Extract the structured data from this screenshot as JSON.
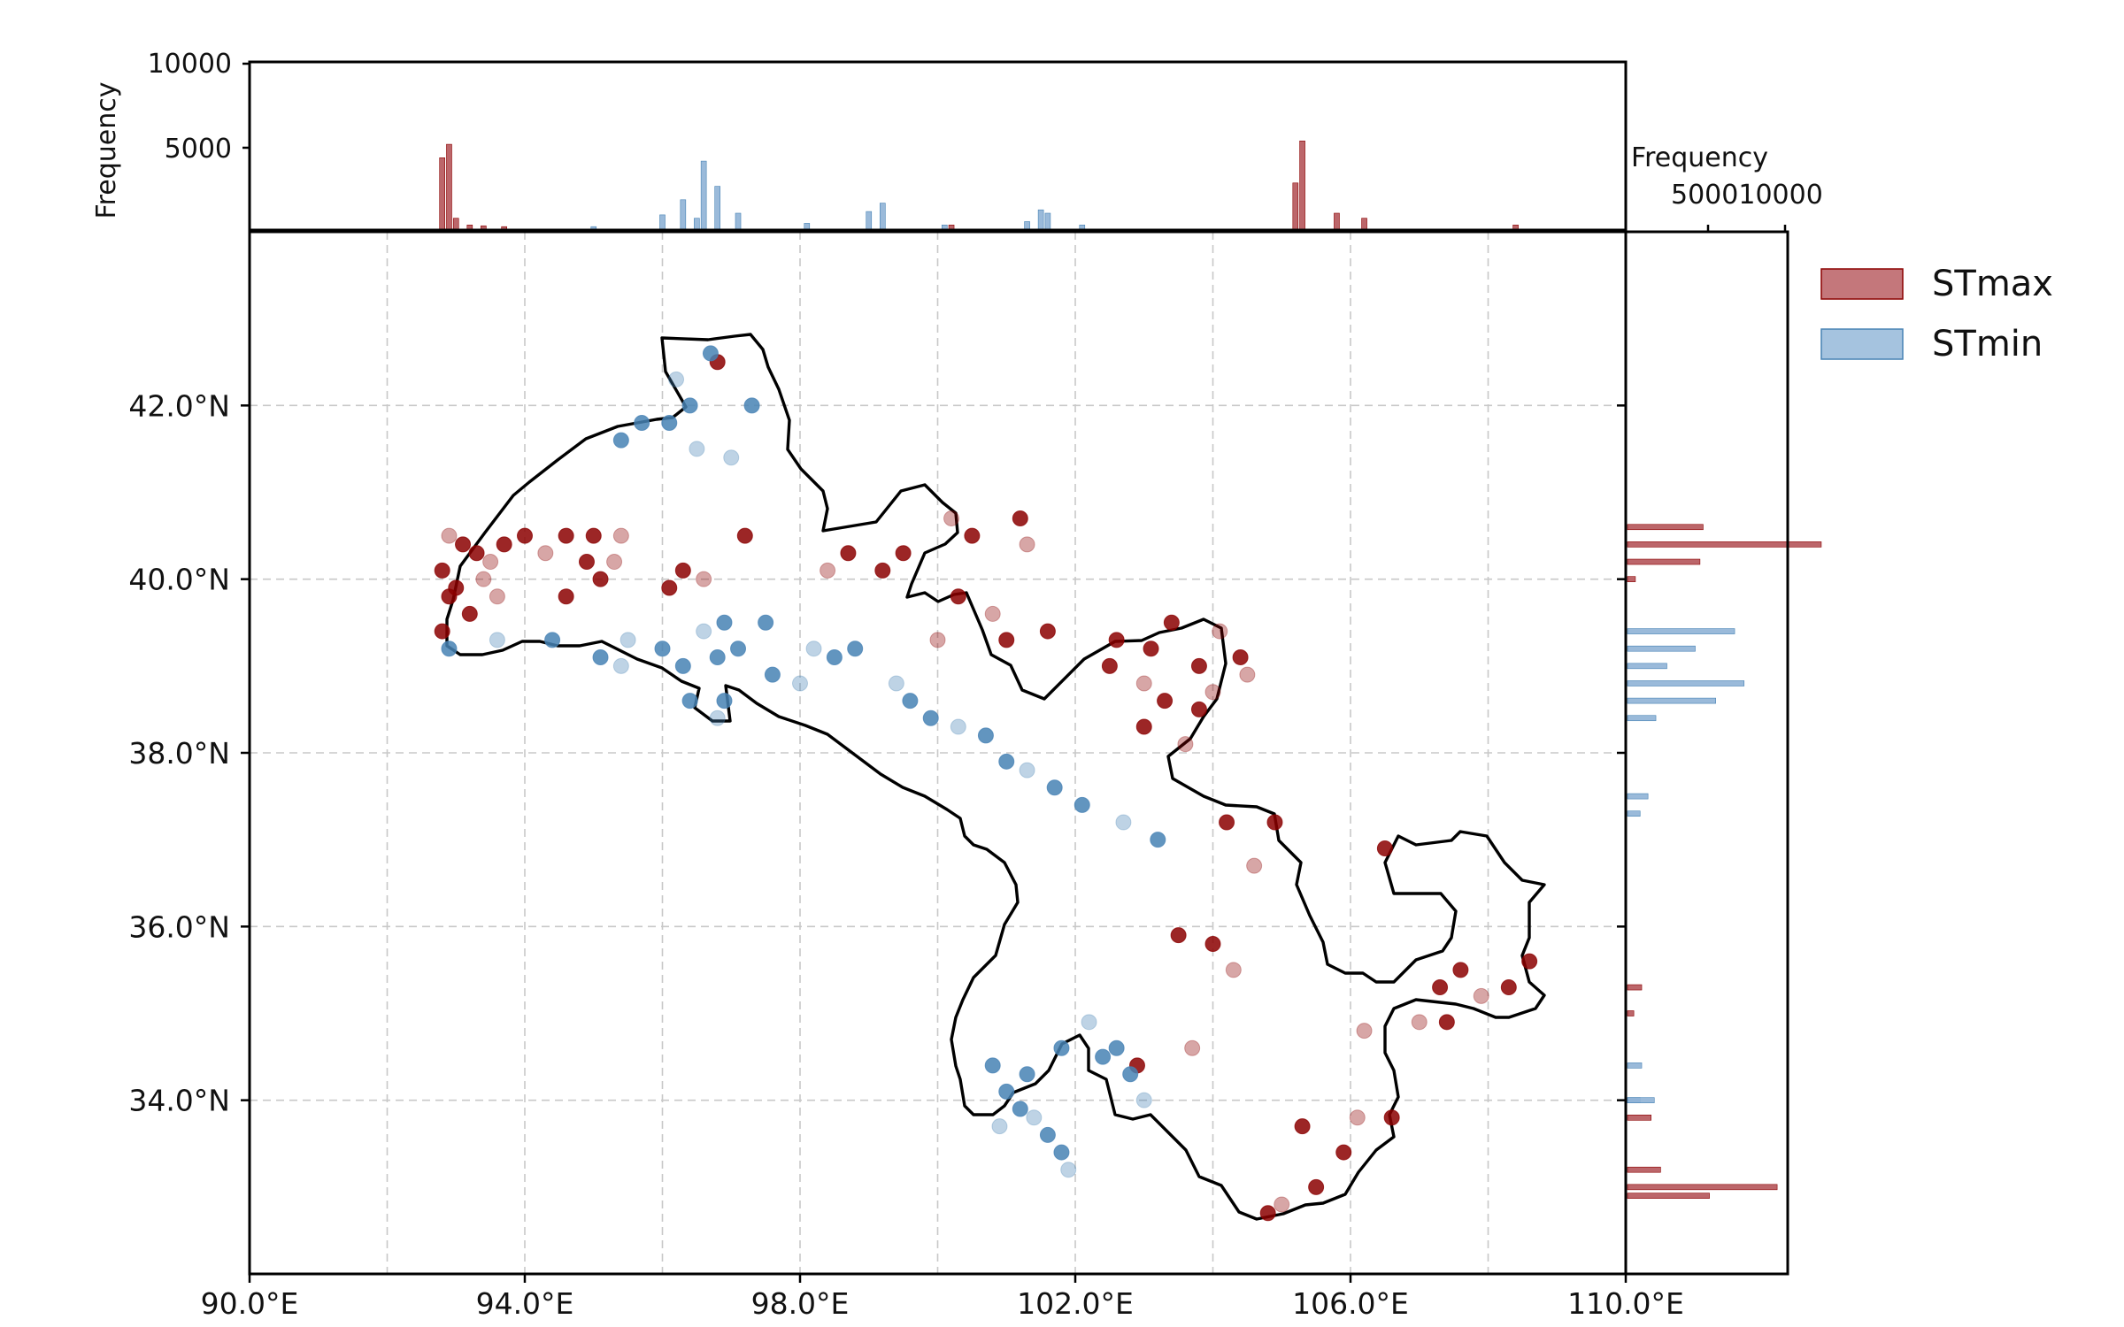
{
  "chart_data": {
    "type": "scatter",
    "map_extent": {
      "lon": [
        90.0,
        110.0
      ],
      "lat": [
        32.0,
        44.0
      ]
    },
    "x_ticks": [
      "90.0°E",
      "94.0°E",
      "98.0°E",
      "102.0°E",
      "106.0°E",
      "110.0°E"
    ],
    "x_tick_values": [
      90,
      94,
      98,
      102,
      106,
      110
    ],
    "y_ticks": [
      "34.0°N",
      "36.0°N",
      "38.0°N",
      "40.0°N",
      "42.0°N"
    ],
    "y_tick_values": [
      34,
      36,
      38,
      40,
      42
    ],
    "grid": true,
    "top_hist": {
      "ylabel": "Frequency",
      "ylim": [
        0,
        10000
      ],
      "ticks": [
        "5000",
        "10000"
      ],
      "tick_values": [
        5000,
        10000
      ]
    },
    "right_hist": {
      "xlabel": "Frequency",
      "xlim": [
        0,
        10000
      ],
      "ticks": [
        "5000",
        "10000"
      ],
      "tick_values": [
        5000,
        10000
      ]
    },
    "legend_position": "right",
    "series": [
      {
        "name": "STmax",
        "color": "#8b0000",
        "hist_color": "#b5555a",
        "points": [
          [
            92.9,
            40.5
          ],
          [
            93.1,
            40.4
          ],
          [
            93.3,
            40.3
          ],
          [
            93.5,
            40.2
          ],
          [
            92.8,
            40.1
          ],
          [
            93.0,
            39.9
          ],
          [
            93.4,
            40.0
          ],
          [
            93.7,
            40.4
          ],
          [
            94.0,
            40.5
          ],
          [
            94.3,
            40.3
          ],
          [
            92.9,
            39.8
          ],
          [
            93.2,
            39.6
          ],
          [
            93.6,
            39.8
          ],
          [
            94.6,
            40.5
          ],
          [
            95.0,
            40.5
          ],
          [
            95.4,
            40.5
          ],
          [
            94.9,
            40.2
          ],
          [
            95.1,
            40.0
          ],
          [
            95.3,
            40.2
          ],
          [
            94.6,
            39.8
          ],
          [
            96.3,
            40.1
          ],
          [
            96.6,
            40.0
          ],
          [
            96.1,
            39.9
          ],
          [
            99.5,
            40.3
          ],
          [
            100.2,
            40.7
          ],
          [
            100.5,
            40.5
          ],
          [
            101.2,
            40.7
          ],
          [
            101.3,
            40.4
          ],
          [
            99.2,
            40.1
          ],
          [
            100.3,
            39.8
          ],
          [
            100.8,
            39.6
          ],
          [
            101.0,
            39.3
          ],
          [
            103.4,
            39.5
          ],
          [
            104.1,
            39.4
          ],
          [
            104.4,
            39.1
          ],
          [
            103.8,
            39.0
          ],
          [
            103.0,
            38.8
          ],
          [
            103.3,
            38.6
          ],
          [
            103.8,
            38.5
          ],
          [
            104.0,
            38.7
          ],
          [
            102.5,
            39.0
          ],
          [
            103.0,
            38.3
          ],
          [
            103.6,
            38.1
          ],
          [
            104.2,
            37.2
          ],
          [
            104.9,
            37.2
          ],
          [
            104.6,
            36.7
          ],
          [
            103.5,
            35.9
          ],
          [
            104.0,
            35.8
          ],
          [
            104.3,
            35.5
          ],
          [
            107.3,
            35.3
          ],
          [
            107.6,
            35.5
          ],
          [
            107.9,
            35.2
          ],
          [
            108.3,
            35.3
          ],
          [
            108.6,
            35.6
          ],
          [
            107.0,
            34.9
          ],
          [
            107.4,
            34.9
          ],
          [
            106.6,
            33.8
          ],
          [
            106.1,
            33.8
          ],
          [
            105.9,
            33.4
          ],
          [
            105.5,
            33.0
          ],
          [
            105.0,
            32.8
          ],
          [
            104.8,
            32.7
          ],
          [
            106.5,
            36.9
          ],
          [
            106.2,
            34.8
          ],
          [
            105.3,
            33.7
          ],
          [
            102.6,
            39.3
          ],
          [
            104.5,
            38.9
          ],
          [
            103.1,
            39.2
          ],
          [
            101.6,
            39.4
          ],
          [
            100.0,
            39.3
          ],
          [
            92.8,
            39.4
          ],
          [
            97.2,
            40.5
          ],
          [
            98.4,
            40.1
          ],
          [
            98.7,
            40.3
          ],
          [
            96.8,
            42.5
          ],
          [
            103.7,
            34.6
          ],
          [
            102.9,
            34.4
          ]
        ]
      },
      {
        "name": "STmin",
        "color": "#4682b4",
        "hist_color": "#8fb3d6",
        "points": [
          [
            96.2,
            42.3
          ],
          [
            96.4,
            42.0
          ],
          [
            96.1,
            41.8
          ],
          [
            96.5,
            41.5
          ],
          [
            95.7,
            41.8
          ],
          [
            95.4,
            41.6
          ],
          [
            97.0,
            41.4
          ],
          [
            97.3,
            42.0
          ],
          [
            96.7,
            42.6
          ],
          [
            95.5,
            39.3
          ],
          [
            96.0,
            39.2
          ],
          [
            96.3,
            39.0
          ],
          [
            96.6,
            39.4
          ],
          [
            96.9,
            39.5
          ],
          [
            96.8,
            39.1
          ],
          [
            95.4,
            39.0
          ],
          [
            95.1,
            39.1
          ],
          [
            94.4,
            39.3
          ],
          [
            93.6,
            39.3
          ],
          [
            92.9,
            39.2
          ],
          [
            96.4,
            38.6
          ],
          [
            96.8,
            38.4
          ],
          [
            96.9,
            38.6
          ],
          [
            97.5,
            39.5
          ],
          [
            98.2,
            39.2
          ],
          [
            98.5,
            39.1
          ],
          [
            98.8,
            39.2
          ],
          [
            99.4,
            38.8
          ],
          [
            99.6,
            38.6
          ],
          [
            99.9,
            38.4
          ],
          [
            100.3,
            38.3
          ],
          [
            100.7,
            38.2
          ],
          [
            101.0,
            37.9
          ],
          [
            101.3,
            37.8
          ],
          [
            101.7,
            37.6
          ],
          [
            102.1,
            37.4
          ],
          [
            102.7,
            37.2
          ],
          [
            103.2,
            37.0
          ],
          [
            97.6,
            38.9
          ],
          [
            98.0,
            38.8
          ],
          [
            101.0,
            34.1
          ],
          [
            101.2,
            33.9
          ],
          [
            101.4,
            33.8
          ],
          [
            101.6,
            33.6
          ],
          [
            101.8,
            33.4
          ],
          [
            101.9,
            33.2
          ],
          [
            101.3,
            34.3
          ],
          [
            100.8,
            34.4
          ],
          [
            100.9,
            33.7
          ],
          [
            101.8,
            34.6
          ],
          [
            102.4,
            34.5
          ],
          [
            102.2,
            34.9
          ],
          [
            102.8,
            34.3
          ],
          [
            102.6,
            34.6
          ],
          [
            103.0,
            34.0
          ],
          [
            97.1,
            39.2
          ]
        ]
      }
    ]
  },
  "legend": {
    "items": [
      {
        "label": "STmax",
        "color": "#b5555a",
        "border": "#8b0000"
      },
      {
        "label": "STmin",
        "color": "#9bbcdc",
        "border": "#4682b4"
      }
    ]
  }
}
